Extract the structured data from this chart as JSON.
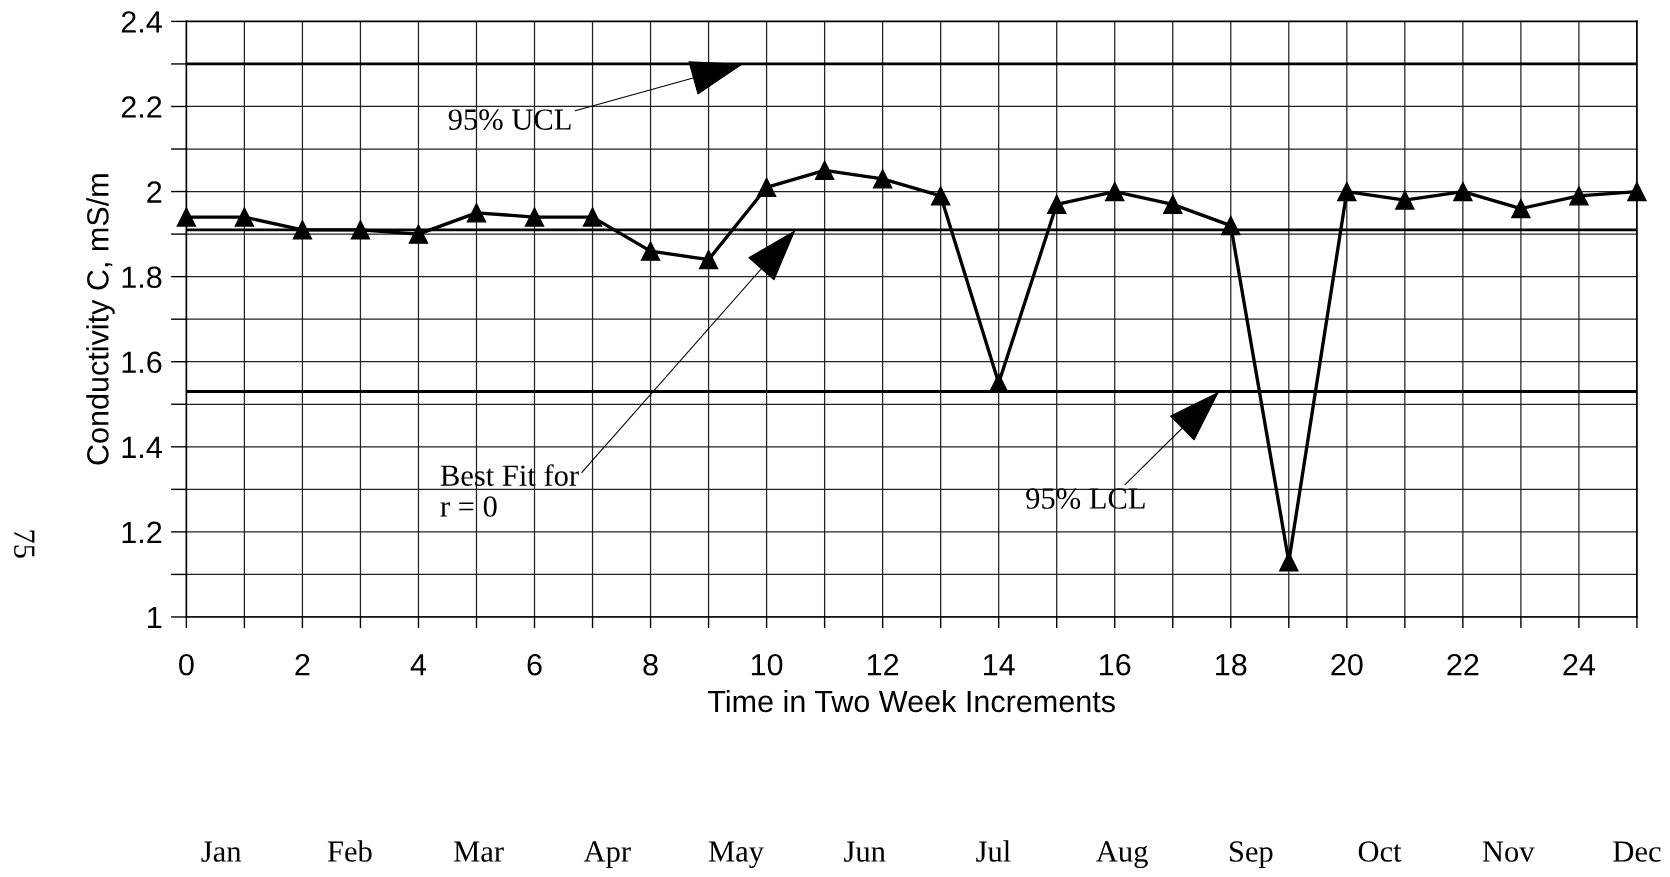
{
  "chart_data": {
    "type": "line",
    "xlabel": "Time in Two Week Increments",
    "ylabel": "Conductivity C, mS/m",
    "x": [
      0,
      1,
      2,
      3,
      4,
      5,
      6,
      7,
      8,
      9,
      10,
      11,
      12,
      13,
      14,
      15,
      16,
      17,
      18,
      19,
      20,
      21,
      22,
      23,
      24,
      25
    ],
    "series": [
      {
        "color": "#000000",
        "values": [
          1.94,
          1.94,
          1.91,
          1.91,
          1.9,
          1.95,
          1.94,
          1.94,
          1.86,
          1.84,
          2.01,
          2.05,
          2.03,
          1.99,
          1.55,
          1.97,
          2.0,
          1.97,
          1.92,
          1.13,
          2.0,
          1.98,
          2.0,
          1.96,
          1.99,
          2.0
        ]
      }
    ],
    "marker": "triangle",
    "line_style": "solid",
    "xlim": [
      0,
      25
    ],
    "ylim": [
      1,
      2.4
    ],
    "xticks": [
      0,
      {
        "value": 1,
        "label": null
      },
      2,
      {
        "value": 3,
        "label": null
      },
      4,
      {
        "value": 5,
        "label": null
      },
      6,
      {
        "value": 7,
        "label": null
      },
      8,
      {
        "value": 9,
        "label": null
      },
      10,
      {
        "value": 11,
        "label": null
      },
      12,
      {
        "value": 13,
        "label": null
      },
      14,
      {
        "value": 15,
        "label": null
      },
      16,
      {
        "value": 17,
        "label": null
      },
      18,
      {
        "value": 19,
        "label": null
      },
      20,
      {
        "value": 21,
        "label": null
      },
      22,
      {
        "value": 23,
        "label": null
      },
      24,
      {
        "value": 25,
        "label": null
      }
    ],
    "yticks": [
      1,
      {
        "value": 1.1,
        "label": null
      },
      1.2,
      {
        "value": 1.3,
        "label": null
      },
      1.4,
      {
        "value": 1.5,
        "label": null
      },
      1.6,
      {
        "value": 1.7,
        "label": null
      },
      1.8,
      {
        "value": 1.9,
        "label": null
      },
      2,
      {
        "value": 2.1,
        "label": null
      },
      2.2,
      {
        "value": 2.3,
        "label": null
      },
      2.4
    ],
    "ref_lines": [
      {
        "axis": "y",
        "value": 2.3,
        "color": "#000000",
        "line_style": "solid"
      },
      {
        "axis": "y",
        "value": 1.91,
        "color": "#000000",
        "line_style": "solid"
      },
      {
        "axis": "y",
        "value": 1.53,
        "color": "#000000",
        "line_style": "solid"
      }
    ],
    "annotations": [
      {
        "text": "95% UCL",
        "x": 9.6,
        "y": 2.3
      },
      {
        "text": "Best Fit for\nr = 0",
        "x": 10.5,
        "y": 1.91
      },
      {
        "text": "95% LCL",
        "x": 17.8,
        "y": 1.53
      },
      "75",
      "Jan",
      "Feb",
      "Mar",
      "Apr",
      "May",
      "Jun",
      "Jul",
      "Aug",
      "Sep",
      "Oct",
      "Nov",
      "Dec"
    ],
    "grid": true
  }
}
